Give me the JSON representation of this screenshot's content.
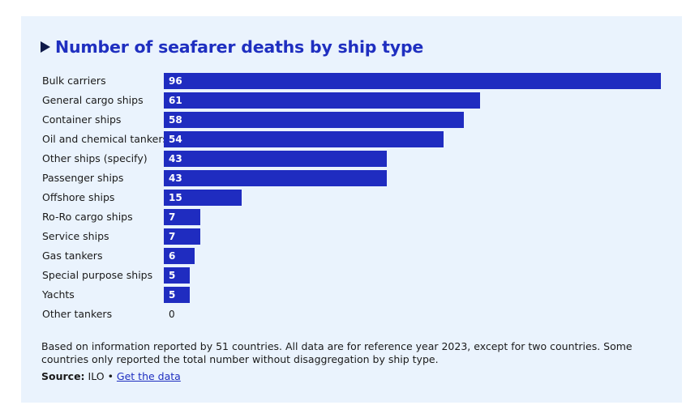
{
  "chart_data": {
    "type": "bar",
    "orientation": "horizontal",
    "title": "Number of seafarer deaths by ship type",
    "categories": [
      "Bulk carriers",
      "General cargo ships",
      "Container ships",
      "Oil and chemical tankers",
      "Other ships (specify)",
      "Passenger ships",
      "Offshore ships",
      "Ro-Ro cargo ships",
      "Service ships",
      "Gas tankers",
      "Special purpose ships",
      "Yachts",
      "Other tankers"
    ],
    "values": [
      96,
      61,
      58,
      54,
      43,
      43,
      15,
      7,
      7,
      6,
      5,
      5,
      0
    ],
    "xlim": [
      0,
      96
    ],
    "grid": false,
    "color": "#1f2cc0"
  },
  "note": "Based on information reported by 51 countries. All data are for reference year 2023, except for two countries. Some countries only reported the total number without disaggregation by ship type.",
  "source": {
    "label": "Source:",
    "text": "ILO",
    "separator": "•",
    "link_text": "Get the data"
  }
}
